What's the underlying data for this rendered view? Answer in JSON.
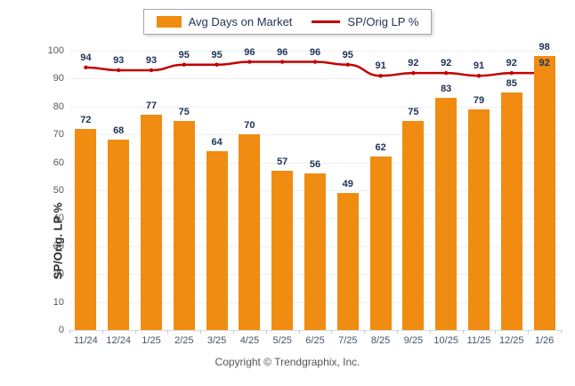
{
  "legend": {
    "bar_label": "Avg Days on Market",
    "line_label": "SP/Orig LP %"
  },
  "chart_data": {
    "type": "bar",
    "categories": [
      "11/24",
      "12/24",
      "1/25",
      "2/25",
      "3/25",
      "4/25",
      "5/25",
      "6/25",
      "7/25",
      "8/25",
      "9/25",
      "10/25",
      "11/25",
      "12/25",
      "1/26"
    ],
    "series": [
      {
        "name": "Avg Days on Market",
        "type": "bar",
        "values": [
          72,
          68,
          77,
          75,
          64,
          70,
          57,
          56,
          49,
          62,
          75,
          83,
          79,
          85,
          98
        ]
      },
      {
        "name": "SP/Orig LP %",
        "type": "line",
        "values": [
          94,
          93,
          93,
          95,
          95,
          96,
          96,
          96,
          95,
          91,
          92,
          92,
          91,
          92,
          92
        ]
      }
    ],
    "title": "",
    "xlabel": "",
    "ylabel": "SP/Orig. LP %",
    "ylim": [
      0,
      100
    ],
    "yticks": [
      0,
      10,
      20,
      30,
      40,
      50,
      60,
      70,
      80,
      90,
      100
    ],
    "grid": true,
    "legend_position": "top"
  },
  "colors": {
    "bar": "#ef8c11",
    "line": "#c40000",
    "value_label": "#1f3156",
    "axis_label": "#44546a",
    "tick_label": "#595959",
    "grid": "#efefef"
  },
  "footer": {
    "copyright": "Copyright © Trendgraphix, Inc."
  }
}
